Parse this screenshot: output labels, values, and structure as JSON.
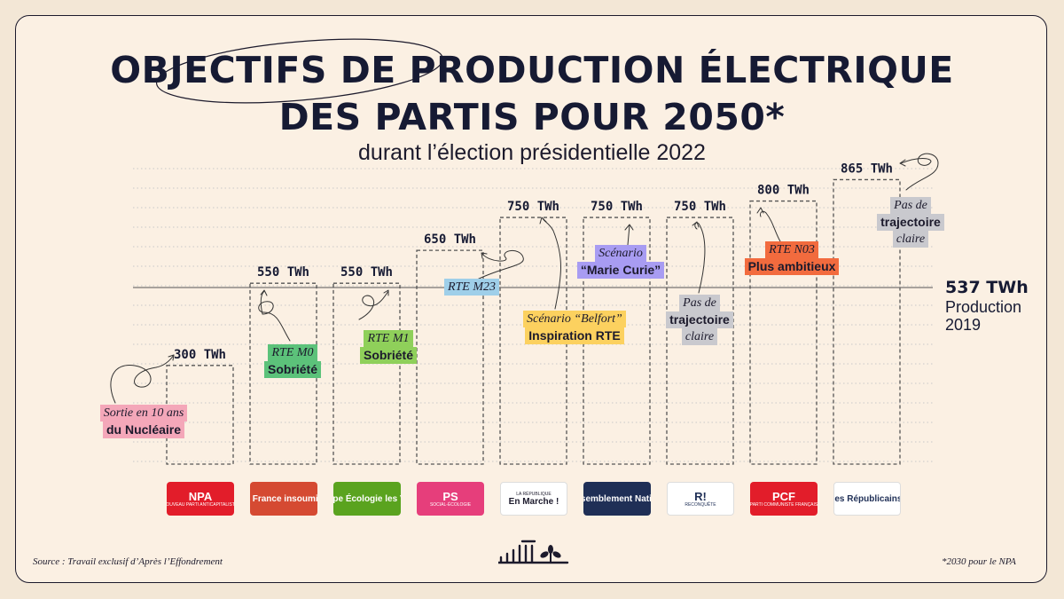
{
  "title_line1": "OBJECTIFS DE PRODUCTION ÉLECTRIQUE",
  "title_line2": "DES PARTIS POUR 2050*",
  "subtitle": "durant l’élection présidentielle 2022",
  "source": "Source : Travail exclusif d’Après l’Effondrement",
  "footnote": "*2030 pour le NPA",
  "reference": {
    "value_label": "537 TWh",
    "value": 537,
    "caption_line1": "Production",
    "caption_line2": "2019"
  },
  "annotations": [
    {
      "line1": "Sortie en 10 ans",
      "line2": "du Nucléaire",
      "color": "#f4a7b9"
    },
    {
      "line1": "RTE M0",
      "line2": "Sobriété",
      "color": "#5cc27a"
    },
    {
      "line1": "RTE M1",
      "line2": "Sobriété",
      "color": "#8fd05a"
    },
    {
      "line1": "RTE M23",
      "line2": "",
      "color": "#9fcfe9"
    },
    {
      "line1": "Scénario “Belfort”",
      "line2": "Inspiration RTE",
      "color": "#fcd15f"
    },
    {
      "line1": "Scénario",
      "line2": "“Marie Curie”",
      "color": "#a89cf2"
    },
    {
      "line1": "Pas de",
      "line2": "trajectoire",
      "line3": "claire",
      "color": "#c9c9ce"
    },
    {
      "line1": "RTE N03",
      "line2": "Plus ambitieux",
      "color": "#f26b3e"
    },
    {
      "line1": "Pas de",
      "line2": "trajectoire",
      "line3": "claire",
      "color": "#c9c9ce"
    }
  ],
  "logos": [
    {
      "name": "NPA",
      "sub": "NOUVEAU PARTI ANTICAPITALISTE",
      "bg": "#e21d2a",
      "fg": "#ffffff"
    },
    {
      "name": "La France insoumise",
      "sub": "",
      "bg": "#d54a32",
      "fg": "#ffffff"
    },
    {
      "name": "Europe Écologie les Verts",
      "sub": "",
      "bg": "#5aa31f",
      "fg": "#ffffff"
    },
    {
      "name": "PS",
      "sub": "SOCIAL-ÉCOLOGIE",
      "bg": "#e63e7b",
      "fg": "#ffffff"
    },
    {
      "name": "En Marche !",
      "sub": "LA RÉPUBLIQUE",
      "bg": "#ffffff",
      "fg": "#1c1a2c"
    },
    {
      "name": "Rassemblement National",
      "sub": "",
      "bg": "#1f2f56",
      "fg": "#ffffff"
    },
    {
      "name": "R!",
      "sub": "RECONQUÊTE",
      "bg": "#ffffff",
      "fg": "#1f2f56"
    },
    {
      "name": "PCF",
      "sub": "PARTI COMMUNISTE FRANÇAIS",
      "bg": "#e21d2a",
      "fg": "#ffffff"
    },
    {
      "name": "les Républicains",
      "sub": "",
      "bg": "#ffffff",
      "fg": "#1f2f56"
    }
  ],
  "chart_data": {
    "type": "bar",
    "title": "OBJECTIFS DE PRODUCTION ÉLECTRIQUE DES PARTIS POUR 2050*",
    "subtitle": "durant l’élection présidentielle 2022",
    "categories": [
      "NPA",
      "La France insoumise",
      "Europe Écologie les Verts",
      "PS",
      "La République En Marche !",
      "Rassemblement National",
      "Reconquête",
      "PCF",
      "les Républicains"
    ],
    "values": [
      300,
      550,
      550,
      650,
      750,
      750,
      750,
      800,
      865
    ],
    "value_labels": [
      "300 TWh",
      "550 TWh",
      "550 TWh",
      "650 TWh",
      "750 TWh",
      "750 TWh",
      "750 TWh",
      "800 TWh",
      "865 TWh"
    ],
    "unit": "TWh",
    "reference_line": 537,
    "ylim": [
      0,
      865
    ],
    "grid": true,
    "xlabel": "",
    "ylabel": ""
  }
}
